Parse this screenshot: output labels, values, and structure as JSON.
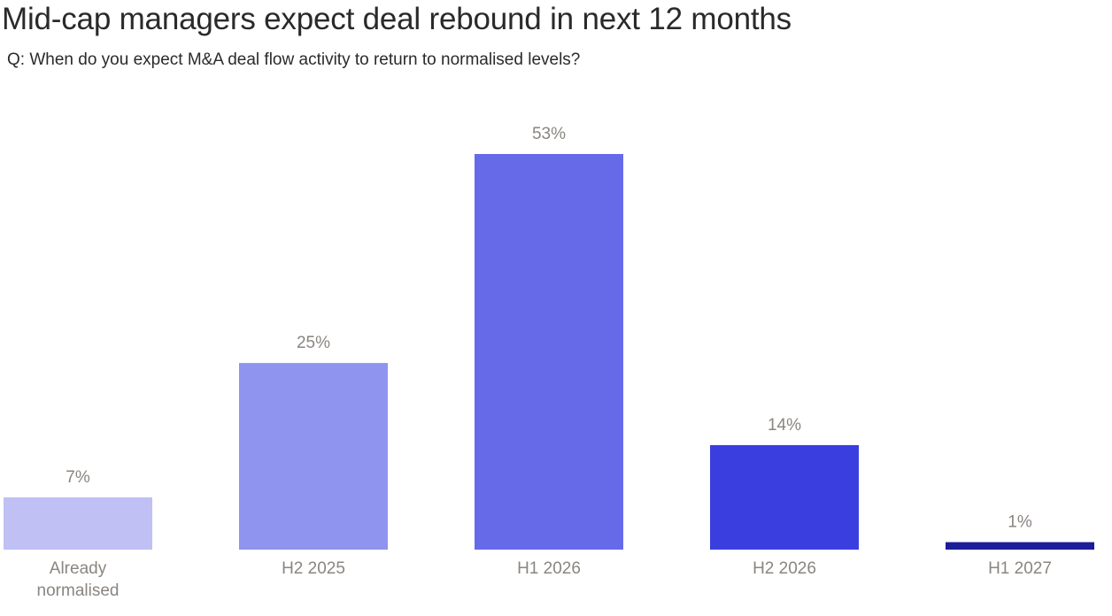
{
  "title": "Mid-cap managers expect deal rebound in next 12 months",
  "subtitle": "Q: When do you expect M&A deal flow activity to return to normalised levels?",
  "chart_data": {
    "type": "bar",
    "title": "Mid-cap managers expect deal rebound in next 12 months",
    "subtitle": "Q: When do you expect M&A deal flow activity to return to normalised levels?",
    "categories": [
      [
        "Already",
        "normalised"
      ],
      [
        "H2 2025"
      ],
      [
        "H1 2026"
      ],
      [
        "H2 2026"
      ],
      [
        "H1 2027"
      ]
    ],
    "values": [
      7,
      25,
      53,
      14,
      1
    ],
    "labels": [
      "7%",
      "25%",
      "53%",
      "14%",
      "1%"
    ],
    "colors": [
      "#c0c0f5",
      "#8f94ee",
      "#666ae8",
      "#3a3edf",
      "#1c1d99"
    ],
    "ylim": [
      0,
      53
    ],
    "grid": false,
    "legend": "none"
  }
}
